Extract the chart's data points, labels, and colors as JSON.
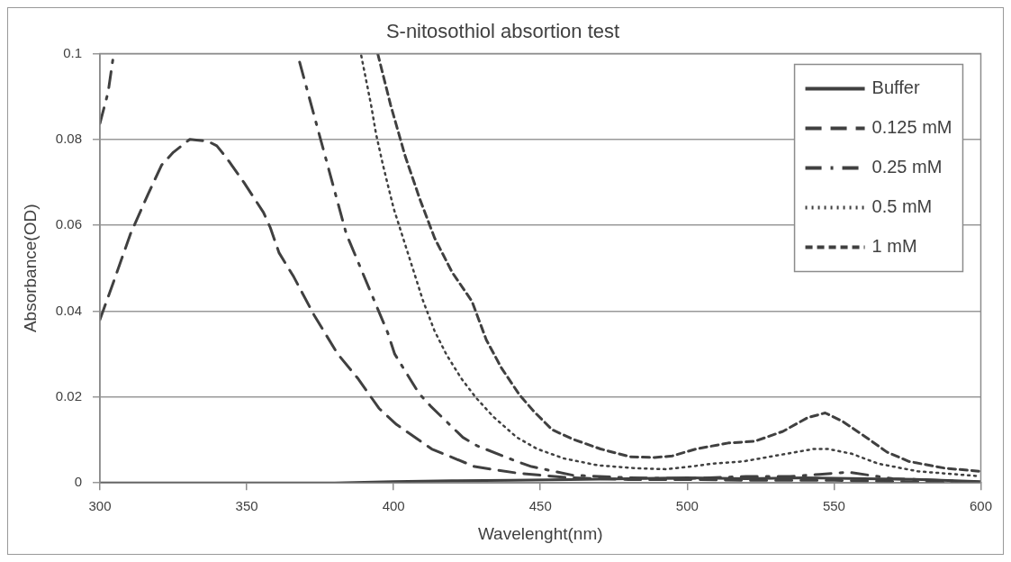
{
  "chart_data": {
    "type": "line",
    "title": "S-nitosothiol absortion test",
    "xlabel": "Wavelenght(nm)",
    "ylabel": "Absorbance(OD)",
    "xlim": [
      300,
      600
    ],
    "xticks": [
      300,
      350,
      400,
      450,
      500,
      550,
      600
    ],
    "ylim": [
      0,
      0.1
    ],
    "yticks": [
      0,
      0.02,
      0.04,
      0.06,
      0.08,
      0.1
    ],
    "grid": "y",
    "legend": "top right",
    "marker": "none",
    "series": [
      {
        "name": "Buffer",
        "color": "#404040",
        "line_style": "solid",
        "x": [
          300,
          320,
          340,
          360,
          380,
          400,
          420,
          440,
          460,
          480,
          500,
          520,
          540,
          560,
          580,
          600
        ],
        "values": [
          0,
          0,
          0,
          0,
          0,
          0.0003,
          0.0005,
          0.0006,
          0.0008,
          0.001,
          0.0012,
          0.001,
          0.0012,
          0.001,
          0.0008,
          0.0003
        ]
      },
      {
        "name": "0.125 mM",
        "color": "#404040",
        "line_style": "longdash",
        "x": [
          300,
          305,
          310.4,
          316.5,
          321,
          325,
          330.6,
          336.7,
          339.8,
          343,
          349,
          355.7,
          358,
          361,
          366,
          373,
          381,
          388,
          395,
          401,
          413,
          427.6,
          442,
          460,
          480,
          500,
          520,
          550,
          600
        ],
        "values": [
          0.038,
          0.0475,
          0.058,
          0.0674,
          0.074,
          0.077,
          0.08,
          0.0796,
          0.0785,
          0.0758,
          0.07,
          0.063,
          0.0595,
          0.0536,
          0.048,
          0.039,
          0.03,
          0.0242,
          0.0174,
          0.0136,
          0.0079,
          0.0038,
          0.0023,
          0.0012,
          0.0008,
          0.0008,
          0.0006,
          0.0006,
          0
        ]
      },
      {
        "name": "0.25 mM",
        "color": "#404040",
        "line_style": "dashdot",
        "x": [
          300,
          302.8,
          304.6,
          336,
          368,
          383.9,
          398,
          400.4,
          408.7,
          412.6,
          423.6,
          428.6,
          442,
          447,
          461,
          480,
          500,
          520,
          535,
          545,
          555,
          570,
          600
        ],
        "values": [
          0.0837,
          0.091,
          0.0995,
          null,
          0.098,
          0.058,
          0.035,
          0.03,
          0.0208,
          0.0179,
          0.0106,
          0.0086,
          0.005,
          0.0038,
          0.0018,
          0.0012,
          0.001,
          0.0015,
          0.0015,
          0.002,
          0.0025,
          0.001,
          0.0002
        ]
      },
      {
        "name": "0.5 mM",
        "color": "#404040",
        "line_style": "dotted",
        "x": [
          389,
          392.4,
          394,
          396.4,
          400,
          410,
          413.9,
          418,
          423,
          428,
          434,
          442,
          449,
          458,
          469.6,
          482.7,
          493,
          501,
          509,
          519,
          543,
          548,
          556,
          565,
          578.5,
          599
        ],
        "values": [
          0.0995,
          0.0878,
          0.0814,
          0.074,
          0.064,
          0.0425,
          0.0355,
          0.0299,
          0.0244,
          0.0199,
          0.0154,
          0.0106,
          0.0079,
          0.0057,
          0.0041,
          0.0034,
          0.0032,
          0.0038,
          0.0045,
          0.005,
          0.0079,
          0.0079,
          0.0068,
          0.0045,
          0.0027,
          0.0016
        ]
      },
      {
        "name": "1 mM",
        "color": "#404040",
        "line_style": "dashed",
        "x": [
          394.6,
          399,
          404,
          409,
          414,
          420,
          426.7,
          431.6,
          436.8,
          443,
          448,
          454,
          461,
          470.5,
          480.6,
          488.9,
          495,
          503,
          514,
          523,
          532.6,
          541,
          547,
          553,
          561,
          568,
          575.5,
          588,
          600
        ],
        "values": [
          0.1,
          0.088,
          0.076,
          0.066,
          0.057,
          0.049,
          0.0423,
          0.0333,
          0.0267,
          0.0204,
          0.0165,
          0.0124,
          0.0102,
          0.0079,
          0.0061,
          0.0059,
          0.0063,
          0.0079,
          0.0093,
          0.0097,
          0.012,
          0.0152,
          0.0163,
          0.0143,
          0.0106,
          0.0072,
          0.005,
          0.0034,
          0.0027
        ]
      }
    ]
  }
}
